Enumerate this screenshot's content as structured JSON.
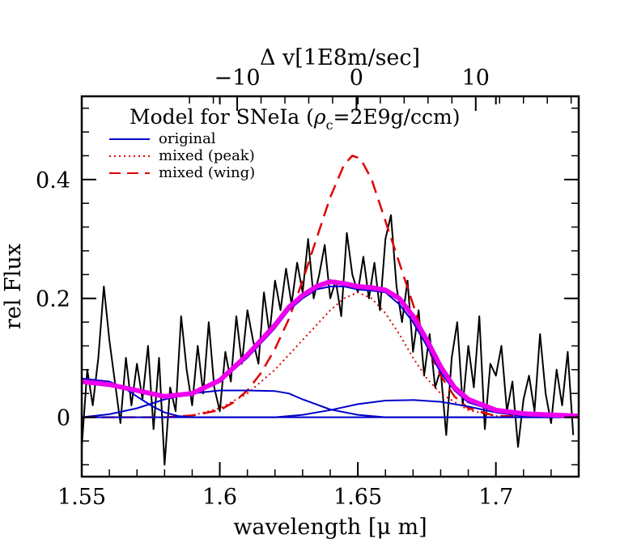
{
  "chart_data": {
    "type": "line",
    "title": "Model for SNeIa (",
    "title_rho": "ρ",
    "title_sub": "c",
    "title_rest": "=2E9g/ccm)",
    "xlabel": "wavelength [",
    "xlabel_mu": "μ",
    "xlabel_rest": " m]",
    "ylabel": "rel Flux",
    "top_xlabel_delta": "Δ",
    "top_xlabel_rest": " v[1E8m/sec]",
    "xlim": [
      1.55,
      1.73
    ],
    "ylim": [
      -0.1,
      0.54
    ],
    "x_ticks": [
      {
        "value": 1.55,
        "label": "1.55"
      },
      {
        "value": 1.6,
        "label": "1.6"
      },
      {
        "value": 1.65,
        "label": "1.65"
      },
      {
        "value": 1.7,
        "label": "1.7"
      }
    ],
    "y_ticks": [
      {
        "value": 0,
        "label": "0"
      },
      {
        "value": 0.2,
        "label": "0.2"
      },
      {
        "value": 0.4,
        "label": "0.4"
      }
    ],
    "top_ticks": [
      {
        "x": 1.6063,
        "label": "−10"
      },
      {
        "x": 1.6495,
        "label": "0"
      },
      {
        "x": 1.6927,
        "label": "10"
      }
    ],
    "legend": [
      {
        "label": "original",
        "color": "#0000cc",
        "style": "solid"
      },
      {
        "label": "mixed (peak)",
        "color": "#e00000",
        "style": "dotted"
      },
      {
        "label": "mixed (wing)",
        "color": "#e00000",
        "style": "dashed"
      }
    ],
    "colors": {
      "observed": "#000000",
      "original": "#0000cc",
      "mixed": "#e00000",
      "total": "#ee00ee"
    },
    "series": [
      {
        "key": "observed",
        "x": [
          1.55,
          1.552,
          1.554,
          1.556,
          1.558,
          1.56,
          1.562,
          1.564,
          1.566,
          1.568,
          1.57,
          1.572,
          1.574,
          1.576,
          1.578,
          1.58,
          1.582,
          1.584,
          1.586,
          1.588,
          1.59,
          1.592,
          1.594,
          1.596,
          1.598,
          1.6,
          1.602,
          1.604,
          1.606,
          1.608,
          1.61,
          1.612,
          1.614,
          1.616,
          1.618,
          1.62,
          1.622,
          1.624,
          1.626,
          1.628,
          1.63,
          1.632,
          1.634,
          1.636,
          1.638,
          1.64,
          1.642,
          1.644,
          1.646,
          1.648,
          1.65,
          1.652,
          1.654,
          1.656,
          1.658,
          1.66,
          1.662,
          1.664,
          1.666,
          1.668,
          1.67,
          1.672,
          1.674,
          1.676,
          1.678,
          1.68,
          1.682,
          1.684,
          1.686,
          1.688,
          1.69,
          1.692,
          1.694,
          1.696,
          1.698,
          1.7,
          1.702,
          1.704,
          1.706,
          1.708,
          1.71,
          1.712,
          1.714,
          1.716,
          1.718,
          1.72,
          1.722,
          1.724,
          1.726,
          1.728
        ],
        "y": [
          -0.05,
          0.08,
          0.02,
          0.1,
          0.22,
          0.13,
          0.06,
          -0.01,
          0.1,
          0.02,
          0.09,
          0.03,
          0.12,
          -0.02,
          0.1,
          -0.08,
          0.05,
          0.01,
          0.17,
          0.08,
          0.02,
          0.12,
          0.04,
          0.16,
          0.05,
          0.01,
          0.11,
          0.06,
          0.17,
          0.09,
          0.18,
          0.13,
          0.09,
          0.21,
          0.14,
          0.23,
          0.18,
          0.25,
          0.19,
          0.26,
          0.21,
          0.3,
          0.2,
          0.24,
          0.29,
          0.2,
          0.23,
          0.17,
          0.31,
          0.24,
          0.21,
          0.27,
          0.2,
          0.26,
          0.18,
          0.3,
          0.34,
          0.22,
          0.16,
          0.23,
          0.11,
          0.18,
          0.07,
          0.14,
          0.05,
          0.08,
          -0.03,
          0.1,
          0.16,
          0.02,
          0.12,
          0.05,
          0.17,
          -0.02,
          0.09,
          0.07,
          0.12,
          0.01,
          0.06,
          -0.05,
          0.03,
          0.07,
          0.01,
          0.14,
          0.04,
          -0.01,
          0.08,
          0.02,
          0.11,
          -0.03
        ]
      },
      {
        "key": "mixed-wing",
        "x": [
          1.55,
          1.58,
          1.59,
          1.6,
          1.605,
          1.61,
          1.615,
          1.62,
          1.625,
          1.63,
          1.635,
          1.64,
          1.645,
          1.648,
          1.651,
          1.655,
          1.66,
          1.665,
          1.67,
          1.675,
          1.68,
          1.685,
          1.69,
          1.7,
          1.73
        ],
        "y": [
          0,
          0,
          0.003,
          0.012,
          0.025,
          0.045,
          0.075,
          0.115,
          0.165,
          0.23,
          0.3,
          0.37,
          0.425,
          0.44,
          0.435,
          0.4,
          0.33,
          0.26,
          0.19,
          0.12,
          0.07,
          0.035,
          0.015,
          0.002,
          0
        ]
      },
      {
        "key": "mixed-peak",
        "x": [
          1.55,
          1.58,
          1.59,
          1.6,
          1.61,
          1.62,
          1.63,
          1.64,
          1.645,
          1.65,
          1.655,
          1.66,
          1.665,
          1.67,
          1.675,
          1.68,
          1.69,
          1.7,
          1.73
        ],
        "y": [
          0,
          0,
          0.003,
          0.015,
          0.04,
          0.08,
          0.13,
          0.18,
          0.2,
          0.21,
          0.2,
          0.175,
          0.14,
          0.1,
          0.065,
          0.04,
          0.012,
          0.002,
          0
        ]
      },
      {
        "key": "original-total",
        "x": [
          1.55,
          1.56,
          1.57,
          1.58,
          1.59,
          1.6,
          1.61,
          1.62,
          1.625,
          1.63,
          1.635,
          1.64,
          1.645,
          1.65,
          1.655,
          1.66,
          1.665,
          1.67,
          1.675,
          1.68,
          1.685,
          1.69,
          1.7,
          1.71,
          1.73
        ],
        "y": [
          0.06,
          0.055,
          0.045,
          0.035,
          0.04,
          0.06,
          0.1,
          0.15,
          0.18,
          0.2,
          0.215,
          0.22,
          0.22,
          0.215,
          0.213,
          0.21,
          0.19,
          0.16,
          0.12,
          0.075,
          0.045,
          0.025,
          0.01,
          0.005,
          0.002
        ]
      },
      {
        "key": "original-comp1",
        "x": [
          1.55,
          1.56,
          1.565,
          1.57,
          1.575,
          1.58,
          1.585,
          1.59,
          1.6,
          1.73
        ],
        "y": [
          0.065,
          0.06,
          0.05,
          0.035,
          0.02,
          0.008,
          0.002,
          0,
          0,
          0
        ]
      },
      {
        "key": "original-comp2",
        "x": [
          1.55,
          1.56,
          1.57,
          1.58,
          1.59,
          1.6,
          1.61,
          1.62,
          1.625,
          1.63,
          1.64,
          1.65,
          1.66,
          1.73
        ],
        "y": [
          0,
          0.005,
          0.015,
          0.03,
          0.04,
          0.045,
          0.045,
          0.044,
          0.04,
          0.03,
          0.013,
          0.004,
          0,
          0
        ]
      },
      {
        "key": "original-comp3",
        "x": [
          1.55,
          1.62,
          1.63,
          1.64,
          1.65,
          1.66,
          1.67,
          1.68,
          1.69,
          1.7,
          1.71,
          1.73
        ],
        "y": [
          0,
          0,
          0.004,
          0.012,
          0.022,
          0.028,
          0.029,
          0.026,
          0.018,
          0.008,
          0.002,
          0
        ]
      },
      {
        "key": "total",
        "x": [
          1.55,
          1.56,
          1.57,
          1.58,
          1.59,
          1.6,
          1.61,
          1.62,
          1.625,
          1.63,
          1.635,
          1.64,
          1.645,
          1.65,
          1.655,
          1.66,
          1.665,
          1.67,
          1.675,
          1.68,
          1.685,
          1.69,
          1.7,
          1.71,
          1.73
        ],
        "y": [
          0.06,
          0.055,
          0.045,
          0.035,
          0.04,
          0.062,
          0.105,
          0.155,
          0.185,
          0.205,
          0.22,
          0.228,
          0.225,
          0.22,
          0.218,
          0.214,
          0.2,
          0.17,
          0.13,
          0.085,
          0.05,
          0.03,
          0.012,
          0.006,
          0.002
        ]
      }
    ]
  }
}
